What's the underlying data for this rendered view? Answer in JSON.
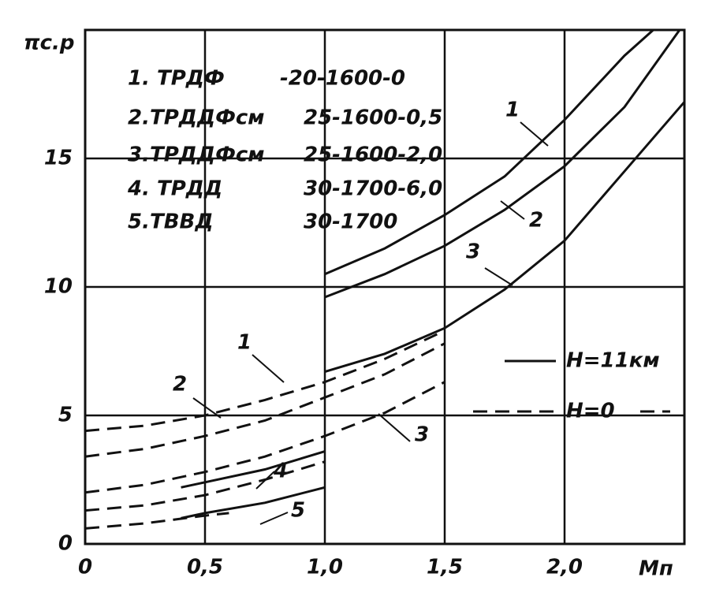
{
  "chart_data": {
    "type": "line",
    "ylabel": "πс.р",
    "xlabel": "Mп",
    "xlim": [
      0,
      2.5
    ],
    "ylim": [
      0,
      20
    ],
    "xticks": [
      0,
      {
        "value": 0.5,
        "label": "0,5"
      },
      {
        "value": 1,
        "label": "1,0"
      },
      {
        "value": 1.5,
        "label": "1,5"
      },
      {
        "value": 2,
        "label": "2,0"
      }
    ],
    "yticks": [
      0,
      5,
      10,
      15
    ],
    "grid": true,
    "color": "#111111",
    "legend_items": [
      {
        "label": "1. ТРДФ",
        "params": "-20-1600-0"
      },
      {
        "label": "2.ТРДДФсм",
        "params": "25-1600-0,5"
      },
      {
        "label": "3.ТРДДФсм",
        "params": "25-1600-2,0"
      },
      {
        "label": "4. ТРДД",
        "params": "30-1700-6,0"
      },
      {
        "label": "5.ТВВД",
        "params": "30-1700"
      }
    ],
    "line_styles": [
      {
        "style": "solid",
        "label": "H=11км"
      },
      {
        "style": "dashed",
        "label": "H=0"
      }
    ],
    "series": [
      {
        "name": "1",
        "style": "solid",
        "x": [
          1.0,
          1.25,
          1.5,
          1.75,
          2.0,
          2.25,
          2.37
        ],
        "values": [
          10.5,
          11.5,
          12.8,
          14.3,
          16.5,
          19.0,
          20
        ]
      },
      {
        "name": "2",
        "style": "solid",
        "x": [
          1.0,
          1.25,
          1.5,
          1.75,
          2.0,
          2.25,
          2.48
        ],
        "values": [
          9.6,
          10.5,
          11.6,
          13.0,
          14.7,
          17.0,
          20
        ]
      },
      {
        "name": "3",
        "style": "solid",
        "x": [
          1.0,
          1.25,
          1.5,
          1.75,
          2.0,
          2.25,
          2.5
        ],
        "values": [
          6.7,
          7.4,
          8.4,
          9.9,
          11.8,
          14.5,
          17.2
        ]
      },
      {
        "name": "4",
        "style": "solid",
        "x": [
          0.4,
          0.5,
          0.75,
          1.0
        ],
        "values": [
          2.2,
          2.4,
          2.9,
          3.6
        ]
      },
      {
        "name": "5",
        "style": "solid",
        "x": [
          0.4,
          0.5,
          0.75,
          1.0
        ],
        "values": [
          1.0,
          1.2,
          1.6,
          2.2
        ]
      },
      {
        "name": "1",
        "style": "dashed",
        "x": [
          0,
          0.25,
          0.5,
          0.75,
          1.0,
          1.25,
          1.5
        ],
        "values": [
          4.4,
          4.6,
          5.0,
          5.6,
          6.3,
          7.2,
          8.3
        ]
      },
      {
        "name": "2",
        "style": "dashed",
        "x": [
          0,
          0.25,
          0.5,
          0.75,
          1.0,
          1.25,
          1.5
        ],
        "values": [
          3.4,
          3.7,
          4.2,
          4.8,
          5.7,
          6.6,
          7.8
        ]
      },
      {
        "name": "3",
        "style": "dashed",
        "x": [
          0,
          0.25,
          0.5,
          0.75,
          1.0,
          1.25,
          1.5
        ],
        "values": [
          2.0,
          2.3,
          2.8,
          3.4,
          4.2,
          5.1,
          6.3
        ]
      },
      {
        "style": "dashed",
        "x": [
          0,
          0.25,
          0.5,
          0.75,
          1.0
        ],
        "values": [
          1.3,
          1.5,
          1.9,
          2.5,
          3.2
        ]
      },
      {
        "style": "dashed",
        "x": [
          0,
          0.25,
          0.5,
          0.6
        ],
        "values": [
          0.6,
          0.8,
          1.1,
          1.2
        ]
      }
    ]
  }
}
